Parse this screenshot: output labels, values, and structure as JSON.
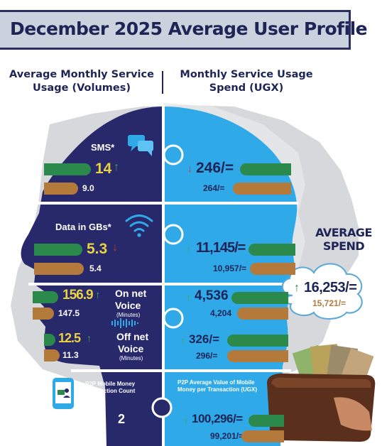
{
  "title": "December 2025 Average User Profile",
  "headers": {
    "left": "Average Monthly Service Usage (Volumes)",
    "right": "Monthly Service Usage Spend (UGX)"
  },
  "sms": {
    "label": "SMS*",
    "current": "14",
    "previous": "9.0",
    "spend_current": "246/=",
    "spend_previous": "264/=",
    "trend": "up",
    "spend_trend": "down"
  },
  "data": {
    "label": "Data in GBs*",
    "current": "5.3",
    "previous": "5.4",
    "spend_current": "11,145/=",
    "spend_previous": "10,957/=",
    "trend": "down",
    "spend_trend": "up"
  },
  "onnet": {
    "label": "On net",
    "label2": "Voice",
    "unit": "(Minutes)",
    "current": "156.9",
    "previous": "147.5",
    "spend_current": "4,536",
    "spend_previous": "4,204"
  },
  "offnet": {
    "label": "Off net",
    "label2": "Voice",
    "unit": "(Minutes)",
    "current": "12.5",
    "previous": "11.3",
    "spend_current": "326/=",
    "spend_previous": "296/="
  },
  "p2p": {
    "label": "P2P Mobile Money Transaction Count",
    "count": "2",
    "value_label": "P2P Average Value of Mobile Money per Transaction (UGX)",
    "spend_current": "100,296/=",
    "spend_previous": "99,201/="
  },
  "average_spend": {
    "title": "AVERAGE SPEND",
    "current": "16,253/=",
    "previous": "15,721/="
  },
  "colors": {
    "navy": "#28296b",
    "blue": "#30a9e8",
    "green": "#2b8a4b",
    "orange": "#b37a3c",
    "yellow": "#e9d23f"
  },
  "icons": [
    "chat-bubbles-icon",
    "wifi-icon",
    "mobile-money-icon",
    "cloud-icon",
    "wallet-cash-image"
  ]
}
